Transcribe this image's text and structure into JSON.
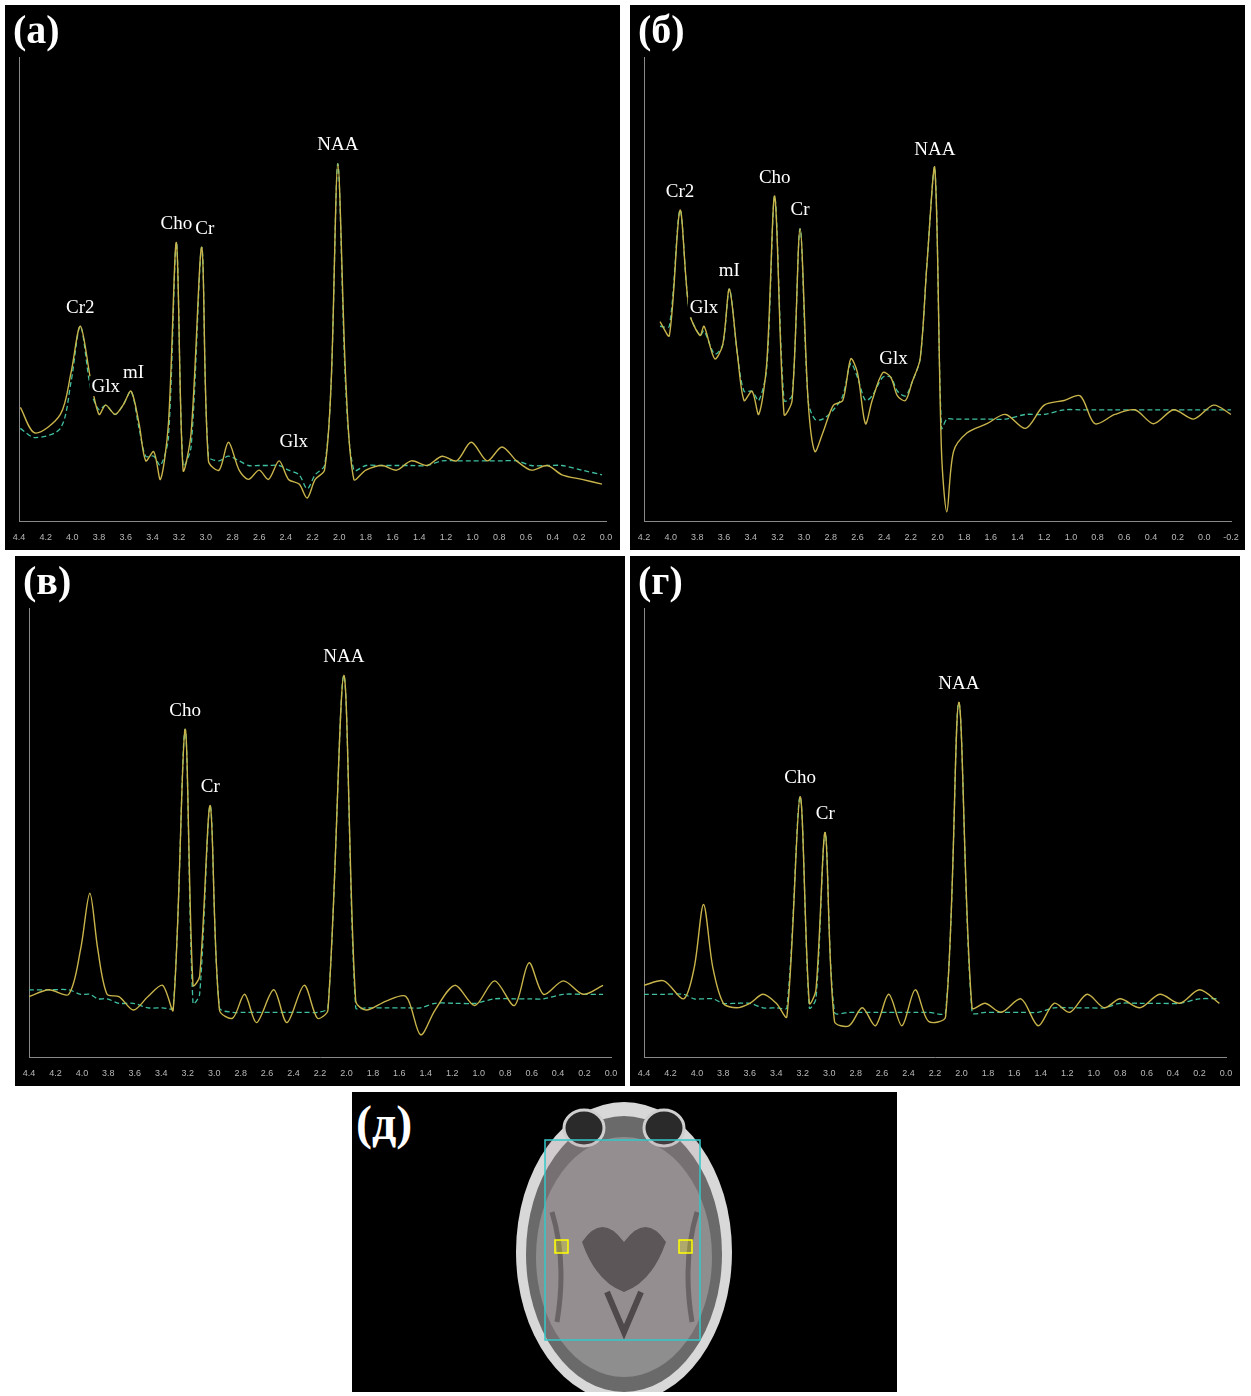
{
  "chart_data": [
    {
      "type": "line",
      "title": "(а)",
      "x": [
        4.39,
        4.28,
        4.09,
        4.01,
        3.94,
        3.86,
        3.8,
        3.75,
        3.68,
        3.62,
        3.56,
        3.5,
        3.45,
        3.39,
        3.34,
        3.28,
        3.22,
        3.17,
        3.11,
        3.03,
        2.98,
        2.9,
        2.83,
        2.75,
        2.68,
        2.6,
        2.53,
        2.45,
        2.38,
        2.3,
        2.24,
        2.18,
        2.11,
        2.06,
        2.01,
        1.95,
        1.89,
        1.8,
        1.68,
        1.57,
        1.46,
        1.34,
        1.23,
        1.12,
        1.01,
        0.89,
        0.78,
        0.67,
        0.56,
        0.44,
        0.33,
        0.18,
        0.03
      ],
      "series": [
        {
          "color": "#c8b44a",
          "line_style": "solid",
          "values": [
            24.5,
            19,
            23,
            32,
            42,
            30,
            23,
            25,
            23,
            25,
            28,
            21,
            13,
            15,
            9,
            21,
            60,
            11,
            19,
            59,
            13,
            11,
            17,
            11,
            9,
            11,
            9,
            13,
            9,
            8,
            5,
            9,
            11,
            30,
            77,
            30,
            9,
            11,
            12,
            11,
            13,
            12,
            14,
            13,
            17,
            13,
            16,
            13,
            11,
            12,
            10,
            9,
            8
          ]
        },
        {
          "color": "#3fc0a0",
          "line_style": "dashed",
          "values": [
            20,
            18,
            20,
            30,
            42,
            28,
            24,
            25,
            23,
            25,
            28,
            20,
            14,
            14,
            12,
            18,
            60,
            12,
            16,
            59,
            14,
            13,
            14,
            13,
            12,
            12,
            12,
            12,
            11,
            10,
            7,
            10,
            12,
            30,
            77,
            28,
            11,
            12,
            12,
            12,
            12,
            12,
            13,
            13,
            13,
            13,
            13,
            13,
            12,
            12,
            12,
            11,
            10
          ]
        }
      ],
      "xlim": [
        4.4,
        0
      ],
      "xticks": [
        4.4,
        4.2,
        {
          "value": 4,
          "label": "4.0"
        },
        3.8,
        3.6,
        3.4,
        3.2,
        {
          "value": 3,
          "label": "3.0"
        },
        2.8,
        2.6,
        2.4,
        2.2,
        {
          "value": 2,
          "label": "2.0"
        },
        1.8,
        1.6,
        1.4,
        1.2,
        {
          "value": 1,
          "label": "1.0"
        },
        0.8,
        0.6,
        0.4,
        0.2,
        {
          "value": 0,
          "label": "0.0"
        }
      ],
      "ylim": [
        0,
        100
      ],
      "tick_labels": "x",
      "grid": false,
      "annotations": [
        {
          "text": "Cr2",
          "x": 3.94,
          "y": 42
        },
        {
          "text": "Glx",
          "x": 3.75,
          "y": 25
        },
        {
          "text": "mI",
          "x": 3.56,
          "y": 28
        },
        {
          "text": "Cho",
          "x": 3.22,
          "y": 60
        },
        {
          "text": "Cr",
          "x": 3.03,
          "y": 59
        },
        {
          "text": "Glx",
          "x": 2.34,
          "y": 13
        },
        {
          "text": "NAA",
          "x": 2.01,
          "y": 77
        }
      ]
    },
    {
      "type": "line",
      "title": "(б)",
      "x": [
        4.08,
        4.01,
        3.93,
        3.86,
        3.78,
        3.75,
        3.67,
        3.61,
        3.56,
        3.5,
        3.45,
        3.39,
        3.34,
        3.28,
        3.22,
        3.15,
        3.09,
        3.03,
        2.97,
        2.92,
        2.86,
        2.78,
        2.71,
        2.65,
        2.6,
        2.54,
        2.49,
        2.41,
        2.35,
        2.3,
        2.24,
        2.19,
        2.13,
        2.08,
        2.02,
        1.97,
        1.93,
        1.88,
        1.78,
        1.63,
        1.49,
        1.34,
        1.2,
        1.05,
        0.93,
        0.82,
        0.67,
        0.52,
        0.38,
        0.23,
        0.08,
        -0.07,
        -0.2
      ],
      "series": [
        {
          "color": "#c8b44a",
          "line_style": "solid",
          "values": [
            43,
            40,
            67,
            45,
            40,
            42,
            35,
            38,
            50,
            36,
            26,
            28,
            23,
            34,
            70,
            23,
            26,
            63,
            26,
            15,
            19,
            25,
            26,
            35,
            32,
            21,
            26,
            32,
            31,
            27,
            26,
            30,
            35,
            55,
            76,
            15,
            2,
            15,
            19,
            21,
            23,
            20,
            25,
            26,
            27,
            21,
            23,
            24,
            21,
            24,
            22,
            25,
            23
          ]
        },
        {
          "color": "#3fc0a0",
          "line_style": "dashed",
          "values": [
            42,
            42,
            67,
            45,
            40,
            41,
            36,
            38,
            50,
            36,
            28,
            28,
            26,
            33,
            70,
            26,
            27,
            63,
            26,
            22,
            22,
            24,
            27,
            34,
            31,
            26,
            27,
            31,
            31,
            28,
            27,
            30,
            35,
            55,
            76,
            20,
            22,
            22,
            22,
            22,
            22,
            23,
            23,
            24,
            24,
            24,
            24,
            24,
            24,
            24,
            24,
            24,
            24
          ]
        }
      ],
      "xlim": [
        4.2,
        -0.2
      ],
      "xticks": [
        4.2,
        {
          "value": 4,
          "label": "4.0"
        },
        3.8,
        3.6,
        3.4,
        3.2,
        {
          "value": 3,
          "label": "3.0"
        },
        2.8,
        2.6,
        2.4,
        2.2,
        {
          "value": 2,
          "label": "2.0"
        },
        1.8,
        1.6,
        1.4,
        1.2,
        {
          "value": 1,
          "label": "1.0"
        },
        0.8,
        0.6,
        0.4,
        0.2,
        {
          "value": 0,
          "label": "0.0"
        },
        -0.2
      ],
      "ylim": [
        0,
        100
      ],
      "tick_labels": "x",
      "grid": false,
      "annotations": [
        {
          "text": "Cr2",
          "x": 3.93,
          "y": 67
        },
        {
          "text": "Glx",
          "x": 3.75,
          "y": 42
        },
        {
          "text": "mI",
          "x": 3.56,
          "y": 50
        },
        {
          "text": "Cho",
          "x": 3.22,
          "y": 70
        },
        {
          "text": "Cr",
          "x": 3.03,
          "y": 63
        },
        {
          "text": "Glx",
          "x": 2.33,
          "y": 31
        },
        {
          "text": "NAA",
          "x": 2.02,
          "y": 76
        }
      ]
    },
    {
      "type": "line",
      "title": "(в)",
      "x": [
        4.4,
        4.25,
        4.1,
        4.01,
        3.94,
        3.88,
        3.81,
        3.72,
        3.61,
        3.5,
        3.39,
        3.31,
        3.22,
        3.16,
        3.11,
        3.03,
        2.96,
        2.86,
        2.77,
        2.68,
        2.55,
        2.45,
        2.32,
        2.22,
        2.14,
        2.02,
        1.93,
        1.85,
        1.7,
        1.55,
        1.44,
        1.33,
        1.18,
        1.03,
        0.88,
        0.73,
        0.62,
        0.51,
        0.36,
        0.21,
        0.06
      ],
      "series": [
        {
          "color": "#c8b44a",
          "line_style": "solid",
          "values": [
            13.5,
            15,
            14,
            24,
            36.5,
            24,
            14,
            13.5,
            10.5,
            13.5,
            16,
            10.5,
            73,
            16,
            18,
            56,
            10.5,
            8.7,
            14,
            7.7,
            15,
            7.7,
            16,
            8.7,
            10.5,
            85,
            12.5,
            10.5,
            12.5,
            13.5,
            5,
            10.5,
            16,
            11.5,
            17,
            11.5,
            21,
            14,
            17,
            14,
            16
          ]
        },
        {
          "color": "#3fc0a0",
          "line_style": "dashed",
          "values": [
            15,
            15,
            15,
            14,
            14,
            13,
            13,
            12,
            12,
            11,
            11,
            11,
            73,
            12,
            14,
            56,
            11,
            10,
            10,
            10,
            10,
            10,
            10,
            10,
            11,
            85,
            11,
            11,
            11,
            11,
            11,
            12,
            12,
            12,
            13,
            13,
            13,
            13,
            14,
            14,
            14
          ]
        }
      ],
      "xlim": [
        4.4,
        0
      ],
      "xticks": [
        4.4,
        4.2,
        {
          "value": 4,
          "label": "4.0"
        },
        3.8,
        3.6,
        3.4,
        3.2,
        {
          "value": 3,
          "label": "3.0"
        },
        2.8,
        2.6,
        2.4,
        2.2,
        {
          "value": 2,
          "label": "2.0"
        },
        1.8,
        1.6,
        1.4,
        1.2,
        {
          "value": 1,
          "label": "1.0"
        },
        0.8,
        0.6,
        0.4,
        0.2,
        {
          "value": 0,
          "label": "0.0"
        }
      ],
      "ylim": [
        0,
        100
      ],
      "tick_labels": "x",
      "grid": false,
      "annotations": [
        {
          "text": "Cho",
          "x": 3.22,
          "y": 73
        },
        {
          "text": "Cr",
          "x": 3.03,
          "y": 56
        },
        {
          "text": "NAA",
          "x": 2.02,
          "y": 85
        }
      ]
    },
    {
      "type": "line",
      "title": "(г)",
      "x": [
        4.4,
        4.25,
        4.1,
        4.02,
        3.95,
        3.88,
        3.8,
        3.7,
        3.6,
        3.5,
        3.4,
        3.32,
        3.22,
        3.15,
        3.1,
        3.03,
        2.96,
        2.85,
        2.75,
        2.65,
        2.55,
        2.45,
        2.35,
        2.25,
        2.12,
        2.02,
        1.92,
        1.82,
        1.7,
        1.55,
        1.42,
        1.3,
        1.18,
        1.05,
        0.92,
        0.8,
        0.65,
        0.5,
        0.35,
        0.2,
        0.05
      ],
      "series": [
        {
          "color": "#c8b44a",
          "line_style": "solid",
          "values": [
            16,
            17,
            13,
            20,
            34,
            20,
            12,
            11,
            12,
            14,
            12,
            9,
            58,
            12,
            15,
            50,
            8,
            7,
            11,
            7,
            14,
            7,
            15,
            8,
            9,
            79,
            11,
            12,
            10,
            13,
            7,
            12,
            10,
            14,
            11,
            13,
            11,
            14,
            12,
            15,
            12
          ]
        },
        {
          "color": "#3fc0a0",
          "line_style": "dashed",
          "values": [
            14,
            14,
            14,
            13,
            13,
            13,
            12,
            12,
            12,
            11,
            11,
            11,
            58,
            11,
            13,
            50,
            10,
            10,
            10,
            10,
            10,
            10,
            10,
            10,
            10,
            79,
            10,
            10,
            10,
            10,
            10,
            11,
            11,
            11,
            11,
            12,
            12,
            12,
            12,
            13,
            13
          ]
        }
      ],
      "xlim": [
        4.4,
        0
      ],
      "xticks": [
        4.4,
        4.2,
        {
          "value": 4,
          "label": "4.0"
        },
        3.8,
        3.6,
        3.4,
        3.2,
        {
          "value": 3,
          "label": "3.0"
        },
        2.8,
        2.6,
        2.4,
        2.2,
        {
          "value": 2,
          "label": "2.0"
        },
        1.8,
        1.6,
        1.4,
        1.2,
        {
          "value": 1,
          "label": "1.0"
        },
        0.8,
        0.6,
        0.4,
        0.2,
        {
          "value": 0,
          "label": "0.0"
        }
      ],
      "ylim": [
        0,
        100
      ],
      "tick_labels": "x",
      "grid": false,
      "annotations": [
        {
          "text": "Cho",
          "x": 3.22,
          "y": 58
        },
        {
          "text": "Cr",
          "x": 3.03,
          "y": 50
        },
        {
          "text": "NAA",
          "x": 2.02,
          "y": 79
        }
      ]
    }
  ],
  "image_panel": {
    "title": "(д)"
  }
}
